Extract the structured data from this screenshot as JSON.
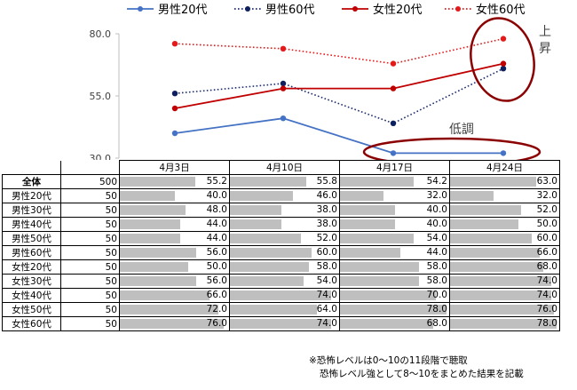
{
  "chart_data": {
    "type": "line",
    "categories": [
      "4月3日",
      "4月10日",
      "4月17日",
      "4月24日"
    ],
    "ylim": [
      30,
      80
    ],
    "yticks": [
      "30.0",
      "55.0",
      "80.0"
    ],
    "series": [
      {
        "name": "男性20代",
        "values": [
          40.0,
          46.0,
          32.0,
          32.0
        ],
        "color": "#4472c4",
        "style": "solid",
        "marker": "#4472c4"
      },
      {
        "name": "男性60代",
        "values": [
          56.0,
          60.0,
          44.0,
          66.0
        ],
        "color": "#1f2d6e",
        "style": "dotted",
        "marker": "#0d1f5c"
      },
      {
        "name": "女性20代",
        "values": [
          50.0,
          58.0,
          58.0,
          68.0
        ],
        "color": "#c00000",
        "style": "solid",
        "marker": "#c00000"
      },
      {
        "name": "女性60代",
        "values": [
          76.0,
          74.0,
          68.0,
          78.0
        ],
        "color": "#e31a1c",
        "style": "dotted",
        "marker": "#e31a1c"
      }
    ],
    "annotations": [
      {
        "text": "上昇",
        "circle_color": "#8b0000"
      },
      {
        "text": "低調",
        "circle_color": "#8b0000"
      }
    ],
    "table": {
      "max": 80,
      "rows": [
        {
          "group": "全体",
          "n": "500",
          "values": [
            "55.2",
            "55.8",
            "54.2",
            "63.0"
          ]
        },
        {
          "group": "男性20代",
          "n": "50",
          "values": [
            "40.0",
            "46.0",
            "32.0",
            "32.0"
          ]
        },
        {
          "group": "男性30代",
          "n": "50",
          "values": [
            "48.0",
            "38.0",
            "40.0",
            "52.0"
          ]
        },
        {
          "group": "男性40代",
          "n": "50",
          "values": [
            "44.0",
            "38.0",
            "40.0",
            "50.0"
          ]
        },
        {
          "group": "男性50代",
          "n": "50",
          "values": [
            "44.0",
            "52.0",
            "54.0",
            "60.0"
          ]
        },
        {
          "group": "男性60代",
          "n": "50",
          "values": [
            "56.0",
            "60.0",
            "44.0",
            "66.0"
          ]
        },
        {
          "group": "女性20代",
          "n": "50",
          "values": [
            "50.0",
            "58.0",
            "58.0",
            "68.0"
          ]
        },
        {
          "group": "女性30代",
          "n": "50",
          "values": [
            "56.0",
            "54.0",
            "58.0",
            "74.0"
          ]
        },
        {
          "group": "女性40代",
          "n": "50",
          "values": [
            "66.0",
            "74.0",
            "70.0",
            "74.0"
          ]
        },
        {
          "group": "女性50代",
          "n": "50",
          "values": [
            "72.0",
            "64.0",
            "78.0",
            "76.0"
          ]
        },
        {
          "group": "女性60代",
          "n": "50",
          "values": [
            "76.0",
            "74.0",
            "68.0",
            "78.0"
          ]
        }
      ]
    }
  },
  "footnote": {
    "line1": "※恐怖レベルは0～10の11段階で聴取",
    "line2": "恐怖レベル強として8～10をまとめた結果を記載"
  }
}
